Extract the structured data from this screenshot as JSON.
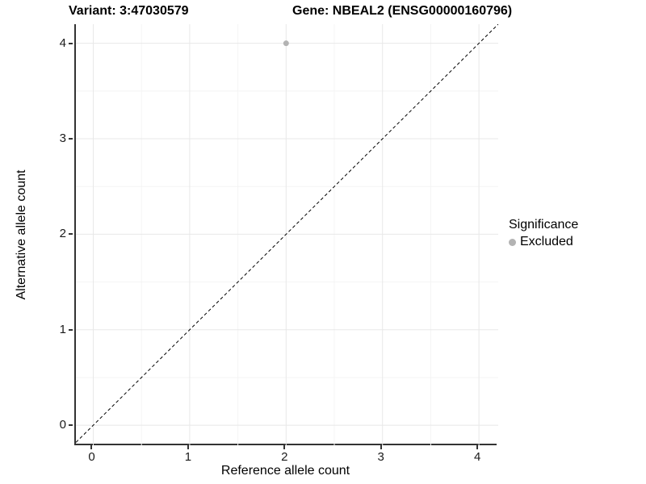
{
  "header": {
    "title_left": "Variant: 3:47030579",
    "title_right": "Gene: NBEAL2 (ENSG00000160796)"
  },
  "colors": {
    "point": "#b3b3b3",
    "axis_line": "#333333",
    "grid_major": "#e8e8e8",
    "grid_minor": "#f4f4f4",
    "reference_line": "#000000",
    "text": "#000000"
  },
  "chart_data": {
    "type": "scatter",
    "title": "Variant: 3:47030579    Gene: NBEAL2 (ENSG00000160796)",
    "xlabel": "Reference allele count",
    "ylabel": "Alternative allele count",
    "xlim": [
      -0.18,
      4.2
    ],
    "ylim": [
      -0.21,
      4.2
    ],
    "xticks": [
      0,
      1,
      2,
      3,
      4
    ],
    "yticks": [
      0,
      1,
      2,
      3,
      4
    ],
    "minor_xticks": [
      0.5,
      1.5,
      2.5,
      3.5
    ],
    "minor_yticks": [
      0.5,
      1.5,
      2.5,
      3.5
    ],
    "grid": true,
    "series": [
      {
        "name": "Excluded",
        "color": "#b3b3b3",
        "marker": "circle",
        "marker_radius": 3.5,
        "points": [
          {
            "x": 2,
            "y": 4
          }
        ]
      }
    ],
    "reference_line": {
      "kind": "identity",
      "style": "dashed",
      "color": "#000000",
      "from": [
        -0.18,
        -0.18
      ],
      "to": [
        4.2,
        4.2
      ]
    },
    "legend": {
      "title": "Significance",
      "position": "right",
      "items": [
        {
          "label": "Excluded",
          "color": "#b3b3b3",
          "marker": "circle"
        }
      ]
    }
  }
}
